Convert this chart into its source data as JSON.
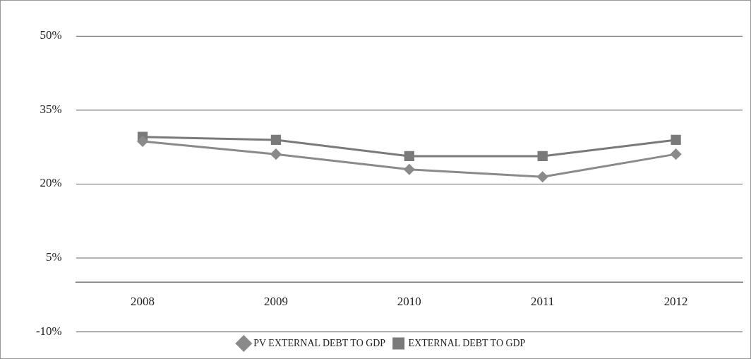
{
  "chart_data": {
    "type": "line",
    "categories": [
      "2008",
      "2009",
      "2010",
      "2011",
      "2012"
    ],
    "series": [
      {
        "name": "PV EXTERNAL DEBT TO GDP",
        "color": "#8a8a8a",
        "marker": "diamond",
        "values": [
          28.6,
          26.0,
          22.9,
          21.4,
          26.0
        ]
      },
      {
        "name": "EXTERNAL DEBT TO GDP",
        "color": "#7a7a7a",
        "marker": "square",
        "values": [
          29.5,
          28.9,
          25.6,
          25.6,
          28.9
        ]
      }
    ],
    "ylim": [
      -10,
      50
    ],
    "yticks": [
      {
        "value": -10,
        "label": "-10%"
      },
      {
        "value": 5,
        "label": "5%"
      },
      {
        "value": 20,
        "label": "20%"
      },
      {
        "value": 35,
        "label": "35%"
      },
      {
        "value": 50,
        "label": "50%"
      }
    ],
    "grid": "y",
    "legend": "bottom"
  }
}
